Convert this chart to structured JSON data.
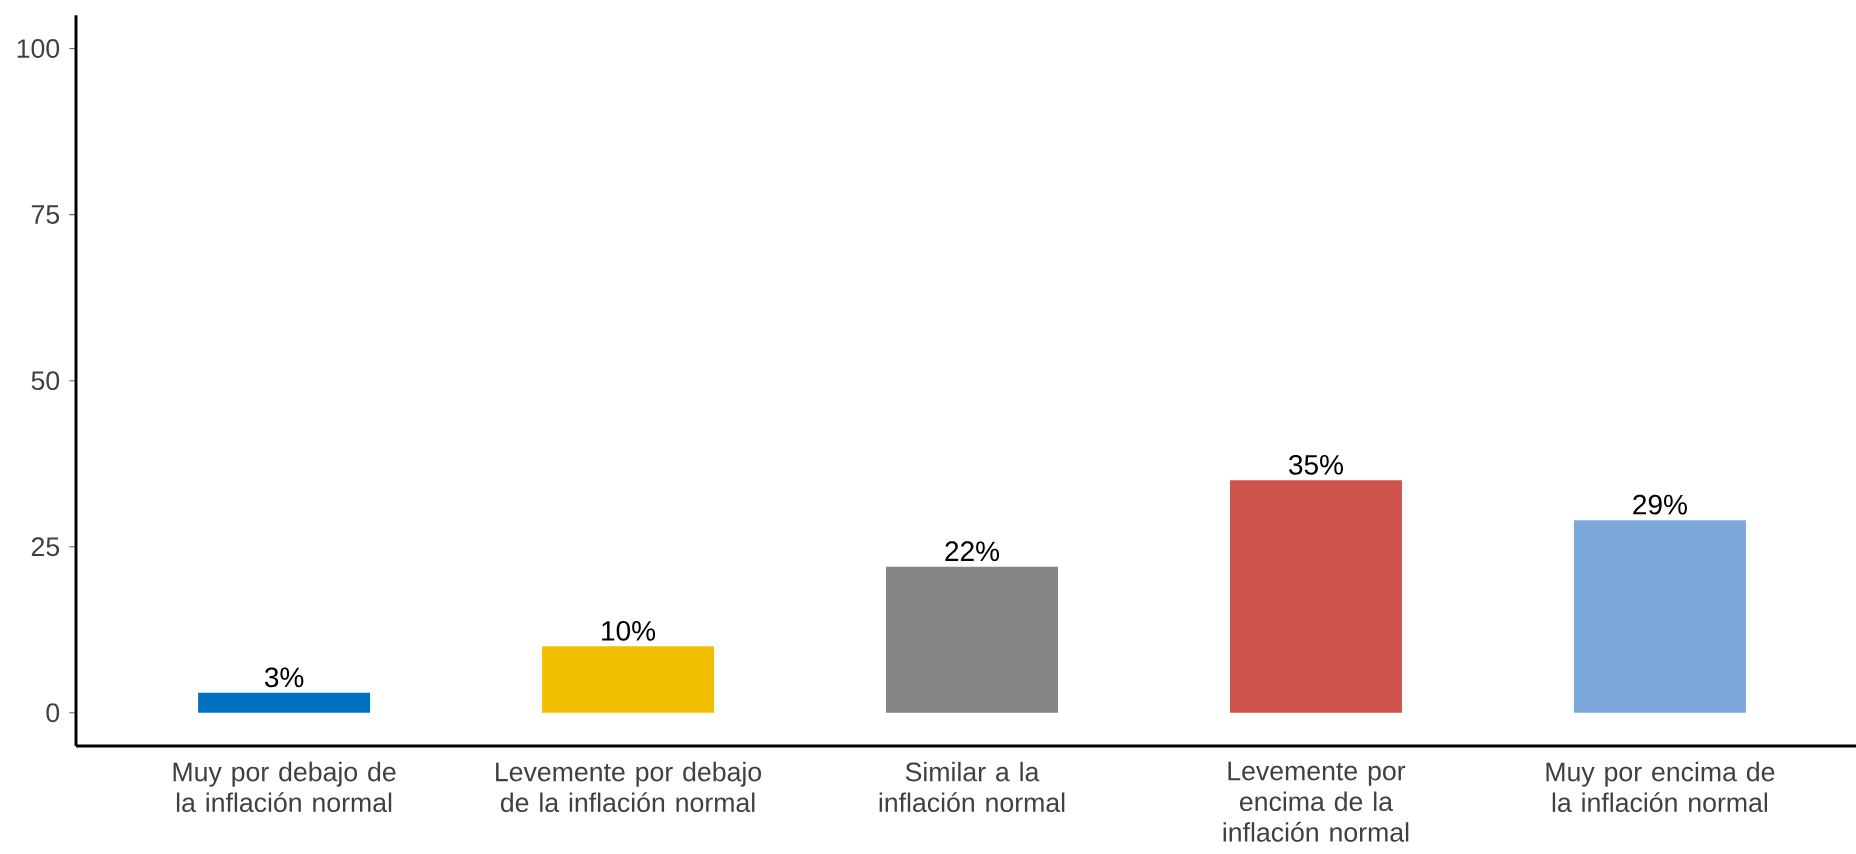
{
  "chart_data": {
    "type": "bar",
    "categories": [
      "Muy por debajo de la inflación normal",
      "Levemente por debajo de la inflación normal",
      "Similar a la inflación normal",
      "Levemente por encima de la inflación normal",
      "Muy por encima de la inflación normal"
    ],
    "values": [
      3,
      10,
      22,
      35,
      29
    ],
    "colors": [
      "#0070c0",
      "#f0c000",
      "#858585",
      "#cd534c",
      "#7ba7db"
    ],
    "value_labels": [
      "3%",
      "10%",
      "22%",
      "35%",
      "29%"
    ],
    "ylim": [
      -5,
      105
    ],
    "yticks": [
      0,
      25,
      50,
      75,
      100
    ],
    "grid": false
  }
}
